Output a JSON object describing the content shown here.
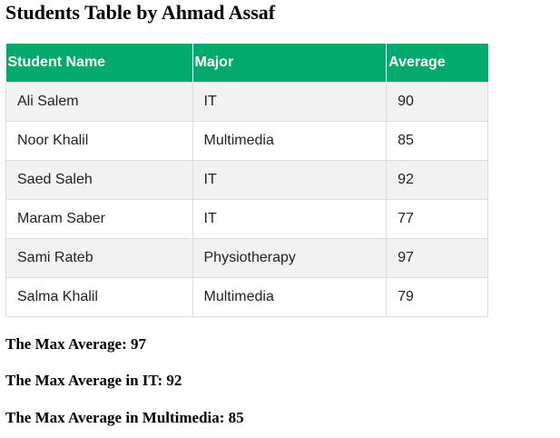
{
  "page": {
    "title": "Students Table by Ahmad Assaf"
  },
  "table": {
    "headers": {
      "name": "Student Name",
      "major": "Major",
      "average": "Average"
    },
    "rows": [
      {
        "name": "Ali Salem",
        "major": "IT",
        "average": "90"
      },
      {
        "name": "Noor Khalil",
        "major": "Multimedia",
        "average": "85"
      },
      {
        "name": "Saed Saleh",
        "major": "IT",
        "average": "92"
      },
      {
        "name": "Maram Saber",
        "major": "IT",
        "average": "77"
      },
      {
        "name": "Sami Rateb",
        "major": "Physiotherapy",
        "average": "97"
      },
      {
        "name": "Salma Khalil",
        "major": "Multimedia",
        "average": "79"
      }
    ]
  },
  "summary": {
    "max_average": "The Max Average: 97",
    "max_average_it": "The Max Average in IT: 92",
    "max_average_multimedia": "The Max Average in Multimedia: 85"
  },
  "colors": {
    "header_background": "#04aa6d",
    "header_text": "#ffffff",
    "stripe_row": "#f2f2f2",
    "cell_border": "#dddddd"
  }
}
